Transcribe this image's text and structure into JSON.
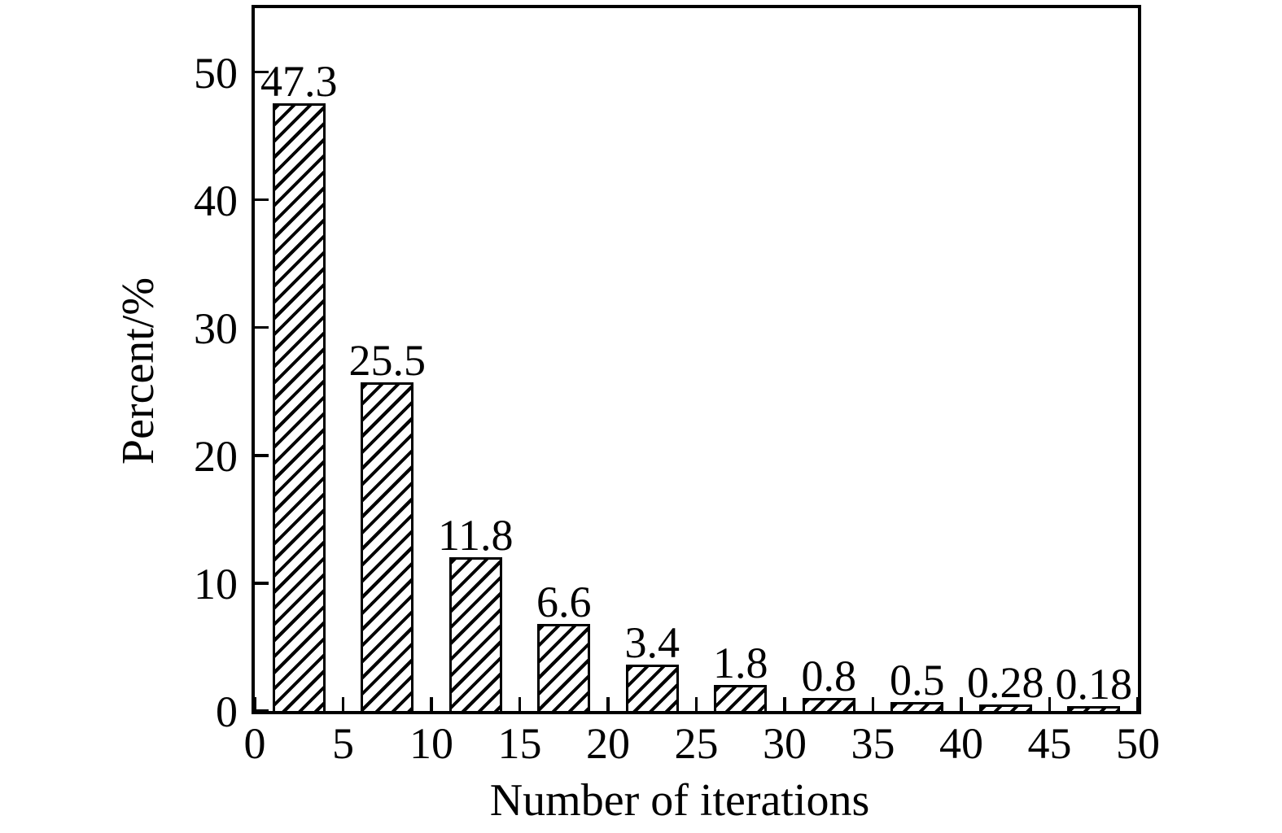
{
  "chart_data": {
    "type": "bar",
    "title": "",
    "xlabel": "Number of iterations",
    "ylabel": "Percent/%",
    "values": [
      47.3,
      25.5,
      11.8,
      6.6,
      3.4,
      1.8,
      0.8,
      0.5,
      0.28,
      0.18
    ],
    "value_labels": [
      "47.3",
      "25.5",
      "11.8",
      "6.6",
      "3.4",
      "1.8",
      "0.8",
      "0.5",
      "0.28",
      "0.18"
    ],
    "bar_centers_x": [
      2.5,
      7.5,
      12.5,
      17.5,
      22.5,
      27.5,
      32.5,
      37.5,
      42.5,
      47.5
    ],
    "bar_width_x": 3,
    "x_tick_values": [
      0,
      5,
      10,
      15,
      20,
      25,
      30,
      35,
      40,
      45,
      50
    ],
    "x_tick_labels": [
      "0",
      "5",
      "10",
      "15",
      "20",
      "25",
      "30",
      "35",
      "40",
      "45",
      "50"
    ],
    "y_tick_values": [
      0,
      10,
      20,
      30,
      40,
      50
    ],
    "y_tick_labels": [
      "0",
      "10",
      "20",
      "30",
      "40",
      "50"
    ],
    "xlim": [
      0,
      50
    ],
    "ylim": [
      0,
      55
    ],
    "grid": false,
    "legend": false,
    "tick_direction": "in",
    "bar_fill": "#ffffff",
    "bar_hatch": "diagonal-forward-slash",
    "stroke_color": "#000000",
    "background_color": "#ffffff"
  }
}
